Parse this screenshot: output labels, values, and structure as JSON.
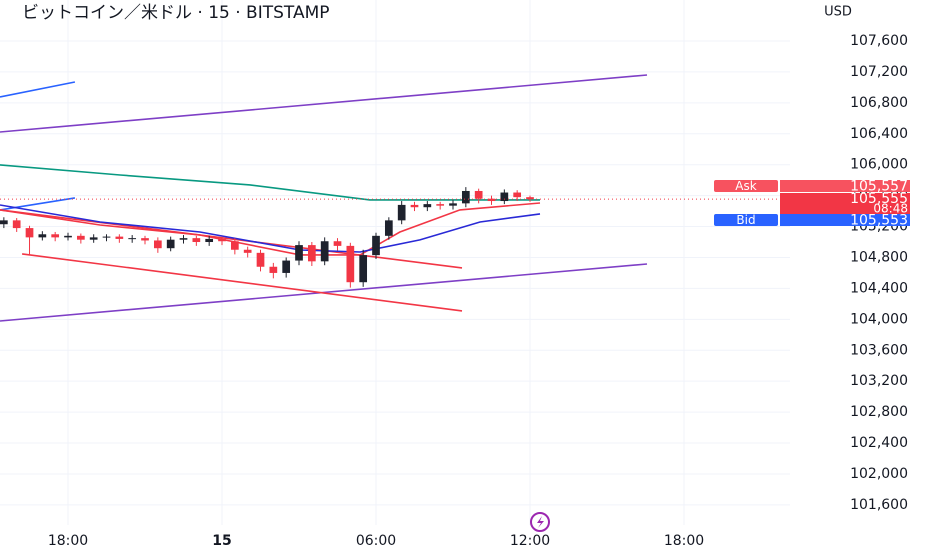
{
  "chart_data": {
    "type": "candlestick",
    "title": "ビットコイン／米ドル · 15 · BITSTAMP",
    "currency": "USD",
    "x": [
      -8.5,
      -8,
      -7.5,
      -7,
      -6.5,
      -6,
      -5.5,
      -5,
      -4.5,
      -4,
      -3.5,
      -3,
      -2.5,
      -2,
      -1.5,
      -1,
      -0.5,
      0,
      0.5,
      1,
      1.5,
      2,
      2.5,
      3,
      3.5,
      4,
      4.5,
      5,
      5.5,
      6,
      6.5,
      7,
      7.5,
      8,
      8.5,
      9,
      9.5,
      10,
      10.5,
      11,
      11.5,
      12
    ],
    "open": [
      105230,
      105280,
      105180,
      105060,
      105100,
      105060,
      105080,
      105030,
      105060,
      105070,
      105040,
      105050,
      105020,
      104920,
      105030,
      105050,
      105000,
      105040,
      105010,
      104900,
      104860,
      104680,
      104600,
      104760,
      104960,
      104750,
      105010,
      104950,
      104480,
      104830,
      105080,
      105280,
      105480,
      105450,
      105490,
      105470,
      105500,
      105660,
      105560,
      105530,
      105640,
      105580
    ],
    "high": [
      105320,
      105310,
      105210,
      105140,
      105130,
      105120,
      105110,
      105100,
      105100,
      105100,
      105090,
      105080,
      105060,
      105070,
      105090,
      105080,
      105080,
      105070,
      105050,
      104940,
      104900,
      104730,
      104800,
      105010,
      105000,
      105060,
      105050,
      104990,
      104900,
      105120,
      105320,
      105530,
      105520,
      105530,
      105520,
      105540,
      105710,
      105690,
      105600,
      105680,
      105670,
      105600
    ],
    "low": [
      105180,
      105130,
      104840,
      105020,
      105010,
      105020,
      104980,
      104990,
      105010,
      104990,
      104990,
      104970,
      104860,
      104880,
      104980,
      104950,
      104950,
      104960,
      104840,
      104800,
      104620,
      104530,
      104540,
      104700,
      104690,
      104700,
      104890,
      104410,
      104420,
      104780,
      105030,
      105230,
      105400,
      105400,
      105420,
      105420,
      105450,
      105500,
      105480,
      105490,
      105530,
      105520
    ],
    "close": [
      105280,
      105180,
      105060,
      105100,
      105060,
      105080,
      105030,
      105060,
      105070,
      105040,
      105050,
      105020,
      104920,
      105030,
      105050,
      105000,
      105040,
      105010,
      104900,
      104860,
      104680,
      104600,
      104760,
      104960,
      104750,
      105010,
      104950,
      104480,
      104830,
      105080,
      105280,
      105480,
      105450,
      105490,
      105470,
      105500,
      105660,
      105560,
      105530,
      105640,
      105580,
      105555
    ],
    "up_color": "#1e222d",
    "down_color": "#f23645",
    "xlim": [
      -8.65,
      22.13
    ],
    "xticks": [
      {
        "value": -6,
        "label": "18:00"
      },
      {
        "value": 0,
        "label": "15"
      },
      {
        "value": 6,
        "label": "06:00"
      },
      {
        "value": 12,
        "label": "12:00"
      },
      {
        "value": 18,
        "label": "18:00"
      }
    ],
    "ylim": [
      101340,
      108130
    ],
    "yticks": [
      {
        "value": 107600,
        "label": "107,600"
      },
      {
        "value": 107200,
        "label": "107,200"
      },
      {
        "value": 106800,
        "label": "106,800"
      },
      {
        "value": 106400,
        "label": "106,400"
      },
      {
        "value": 106000,
        "label": "106,000"
      },
      {
        "value": 105600,
        "label": "105,600"
      },
      {
        "value": 105200,
        "label": "105,200"
      },
      {
        "value": 104800,
        "label": "104,800"
      },
      {
        "value": 104400,
        "label": "104,400"
      },
      {
        "value": 104000,
        "label": "104,000"
      },
      {
        "value": 103600,
        "label": "103,600"
      },
      {
        "value": 103200,
        "label": "103,200"
      },
      {
        "value": 102800,
        "label": "102,800"
      },
      {
        "value": 102400,
        "label": "102,400"
      },
      {
        "value": 102000,
        "label": "102,000"
      },
      {
        "value": 101600,
        "label": "101,600"
      }
    ],
    "grid": true,
    "lines": [
      {
        "color": "#7e3fc6",
        "x": [
          -8.65,
          16.56
        ],
        "values": [
          106423,
          107160
        ]
      },
      {
        "color": "#7e3fc6",
        "x": [
          -8.65,
          16.56
        ],
        "values": [
          103979,
          104716
        ]
      },
      {
        "color": "#2962ff",
        "x": [
          -8.65,
          -5.73
        ],
        "values": [
          106876,
          107070
        ]
      },
      {
        "color": "#2962ff",
        "x": [
          -8.65,
          -5.73
        ],
        "values": [
          105415,
          105570
        ]
      },
      {
        "color": "#f23645",
        "x": [
          -8.65,
          9.35
        ],
        "values": [
          105415,
          104665
        ]
      },
      {
        "color": "#f23645",
        "x": [
          -7.79,
          9.35
        ],
        "values": [
          104846,
          104109
        ]
      },
      {
        "color": "#089981",
        "x": [
          -8.65,
          -3.97,
          1.09,
          5.76,
          12.39
        ],
        "values": [
          105997,
          105867,
          105738,
          105544,
          105544
        ]
      },
      {
        "color": "#f23645",
        "x": [
          -8.65,
          -4.75,
          -0.86,
          3.04,
          5.38,
          6.93,
          9.27,
          12.39
        ],
        "values": [
          105415,
          105220,
          105091,
          104833,
          104833,
          105130,
          105415,
          105505
        ]
      },
      {
        "color": "#2929d6",
        "x": [
          -8.65,
          -4.75,
          -0.86,
          3.04,
          5.38,
          7.71,
          10.05,
          12.39
        ],
        "values": [
          105479,
          105259,
          105130,
          104897,
          104871,
          105027,
          105259,
          105363
        ]
      }
    ],
    "price_tags": [
      {
        "name": "Ask",
        "value": 105557,
        "value_label": "105,557",
        "color": "#f7525f"
      },
      {
        "value": 105555,
        "value_label": "105,555",
        "countdown": "08:48",
        "color": "#f23645"
      },
      {
        "name": "Bid",
        "value": 105553,
        "value_label": "105,553",
        "color": "#2962ff"
      }
    ]
  }
}
